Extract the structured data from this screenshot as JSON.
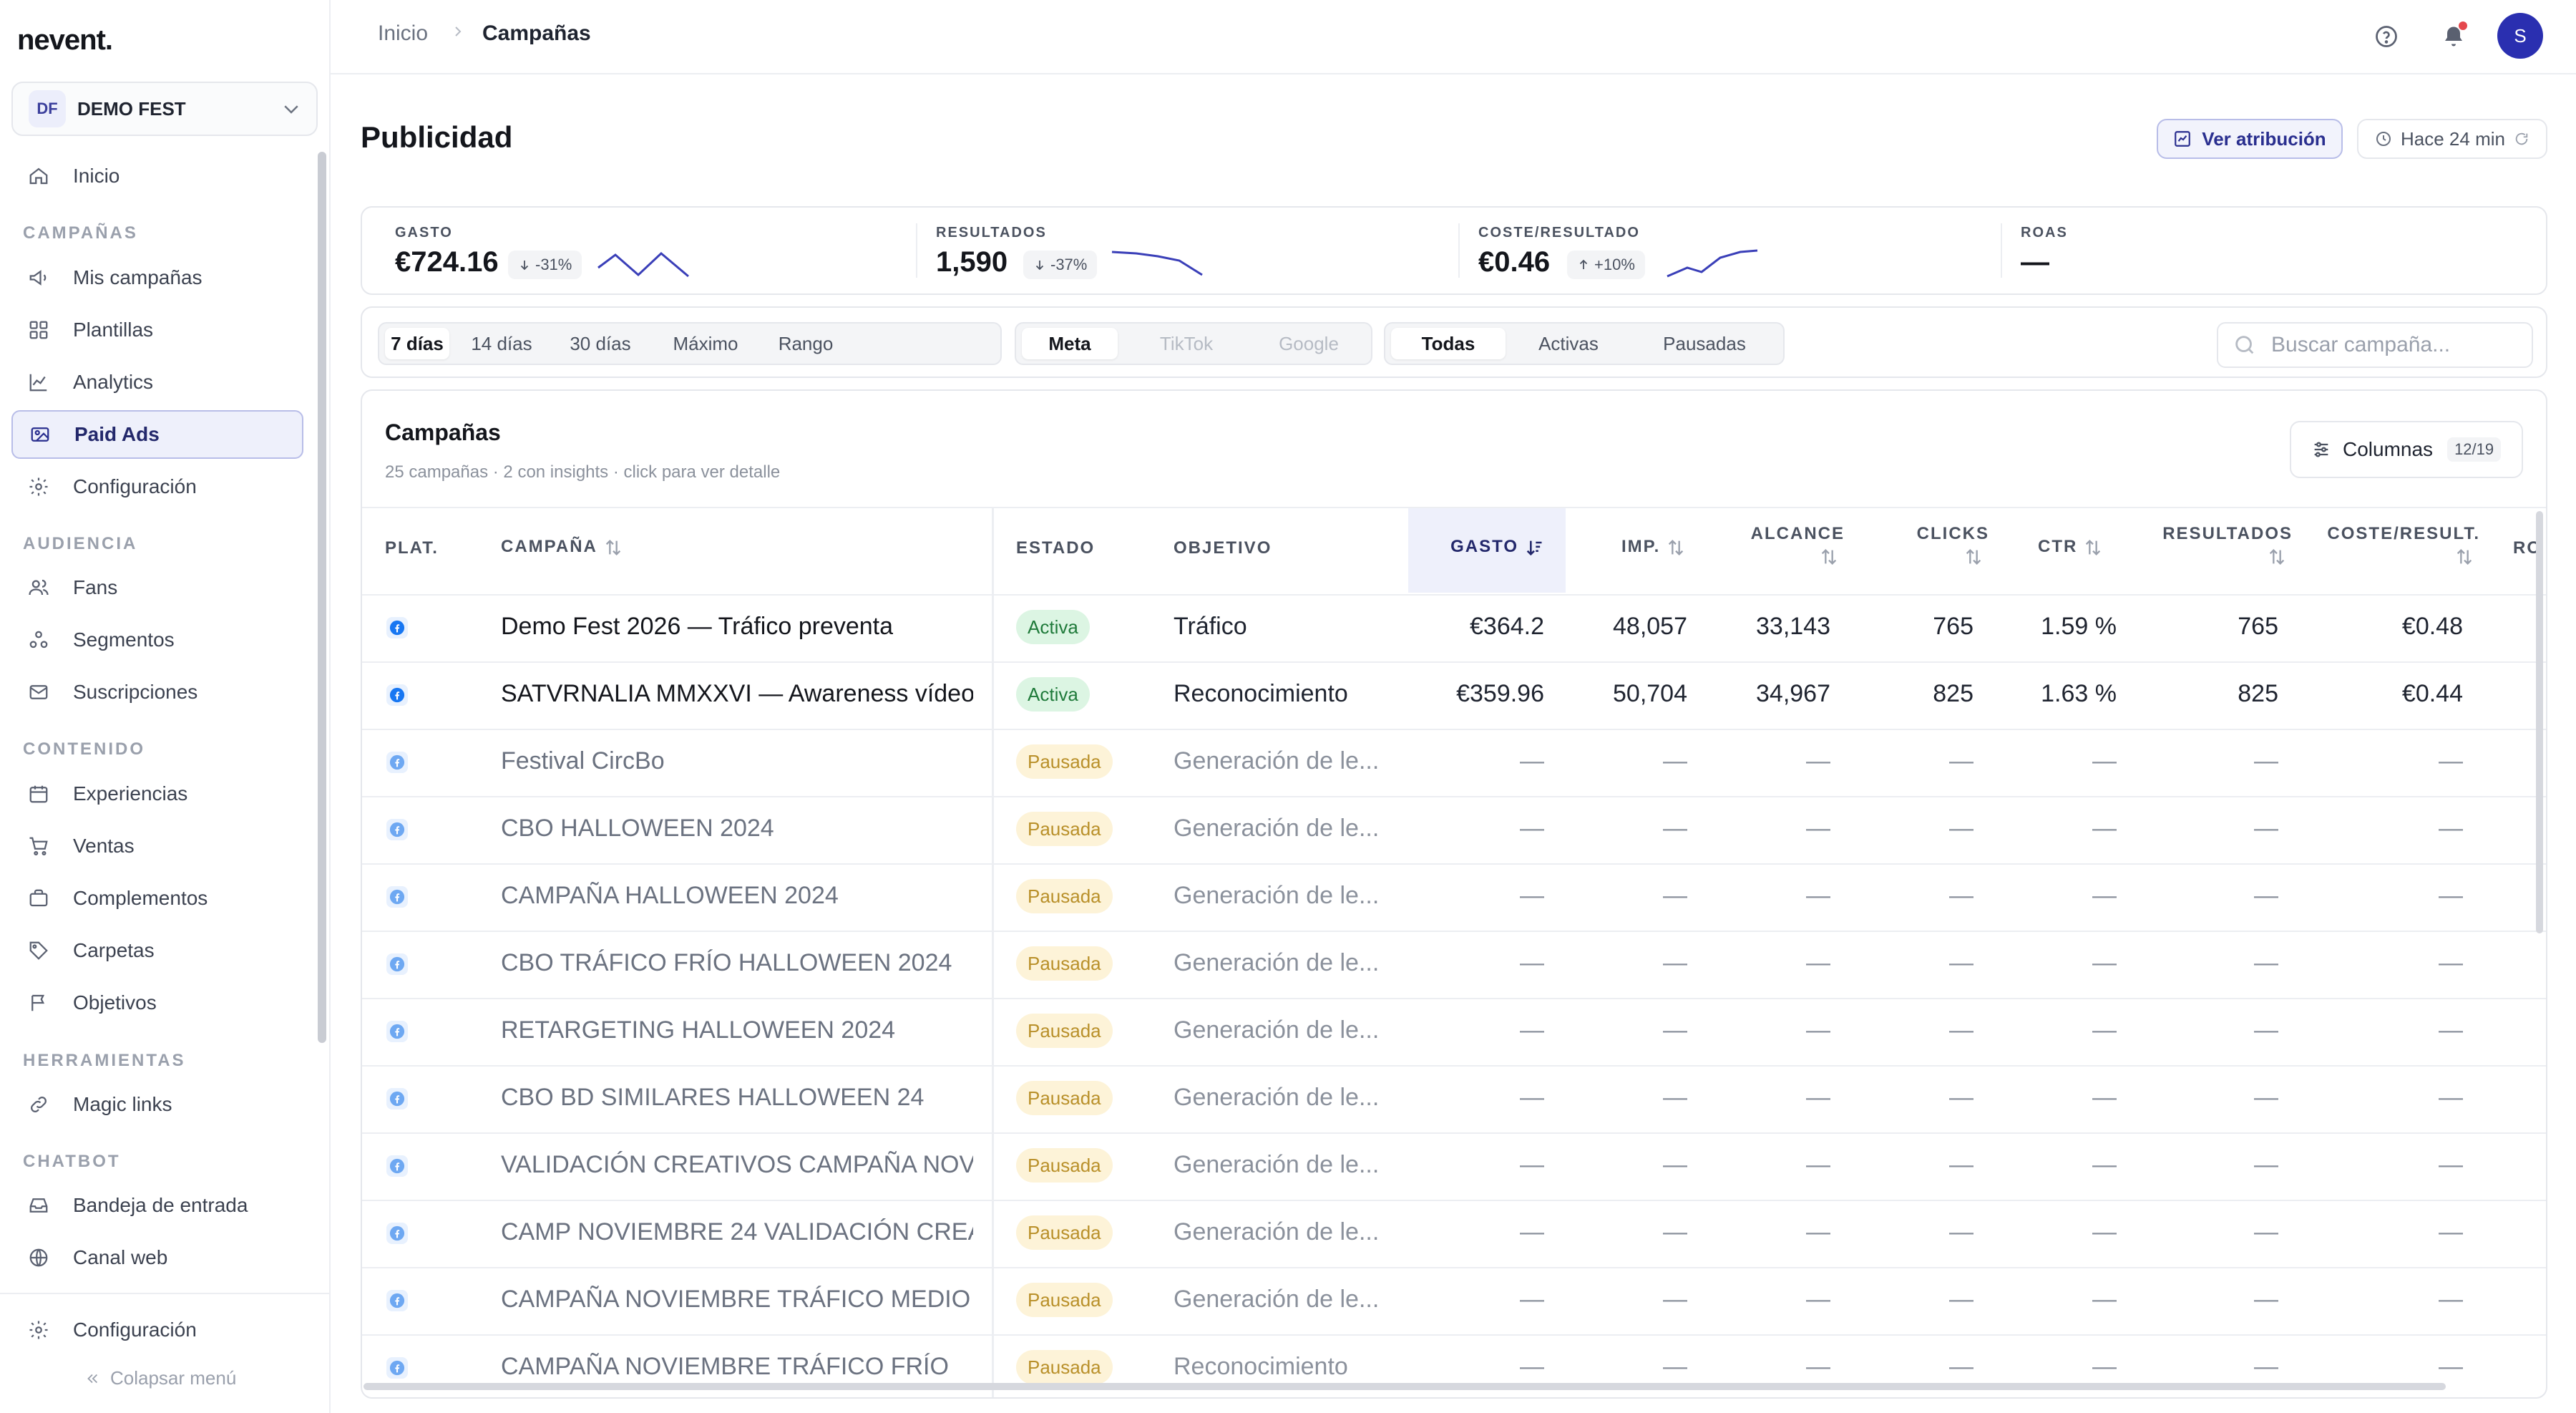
{
  "app": {
    "brand": "nevent."
  },
  "org": {
    "initials": "DF",
    "name": "DEMO FEST"
  },
  "sidebar": {
    "items_top": [
      {
        "label": "Inicio",
        "icon": "home-icon"
      }
    ],
    "sections": [
      {
        "title": "CAMPAÑAS",
        "items": [
          {
            "label": "Mis campañas",
            "icon": "megaphone-icon"
          },
          {
            "label": "Plantillas",
            "icon": "grid-icon"
          },
          {
            "label": "Analytics",
            "icon": "line-chart-icon"
          },
          {
            "label": "Paid Ads",
            "icon": "ad-image-icon",
            "active": true
          },
          {
            "label": "Configuración",
            "icon": "gear-icon"
          }
        ]
      },
      {
        "title": "AUDIENCIA",
        "items": [
          {
            "label": "Fans",
            "icon": "users-icon"
          },
          {
            "label": "Segmentos",
            "icon": "segments-icon"
          },
          {
            "label": "Suscripciones",
            "icon": "mail-icon"
          }
        ]
      },
      {
        "title": "CONTENIDO",
        "items": [
          {
            "label": "Experiencias",
            "icon": "calendar-icon"
          },
          {
            "label": "Ventas",
            "icon": "cart-icon"
          },
          {
            "label": "Complementos",
            "icon": "briefcase-icon"
          },
          {
            "label": "Carpetas",
            "icon": "tag-icon"
          },
          {
            "label": "Objetivos",
            "icon": "flag-icon"
          }
        ]
      },
      {
        "title": "HERRAMIENTAS",
        "items": [
          {
            "label": "Magic links",
            "icon": "link-icon"
          }
        ]
      },
      {
        "title": "CHATBOT",
        "items": [
          {
            "label": "Bandeja de entrada",
            "icon": "inbox-icon"
          },
          {
            "label": "Canal web",
            "icon": "globe-icon"
          }
        ]
      }
    ],
    "footer_settings": "Configuración",
    "collapse": "Colapsar menú"
  },
  "topbar": {
    "breadcrumb_home": "Inicio",
    "breadcrumb_current": "Campañas",
    "avatar_initial": "S"
  },
  "header": {
    "title": "Publicidad",
    "attribution_btn": "Ver atribución",
    "updated_label": "Hace 24 min"
  },
  "kpis": [
    {
      "label": "GASTO",
      "value": "€724.16",
      "delta": "-31%",
      "direction": "down"
    },
    {
      "label": "RESULTADOS",
      "value": "1,590",
      "delta": "-37%",
      "direction": "down"
    },
    {
      "label": "COSTE/RESULTADO",
      "value": "€0.46",
      "delta": "+10%",
      "direction": "up"
    },
    {
      "label": "ROAS",
      "value": "—"
    }
  ],
  "filters": {
    "periods": [
      "7 días",
      "14 días",
      "30 días",
      "Máximo",
      "Rango"
    ],
    "period_selected": "7 días",
    "platforms": [
      "Meta",
      "TikTok",
      "Google"
    ],
    "platform_selected": "Meta",
    "statuses": [
      "Todas",
      "Activas",
      "Pausadas"
    ],
    "status_selected": "Todas",
    "search_placeholder": "Buscar campaña..."
  },
  "table": {
    "title": "Campañas",
    "subtitle": "25 campañas · 2 con insights · click para ver detalle",
    "columns_btn": "Columnas",
    "columns_count": "12/19",
    "headers": {
      "plat": "PLAT.",
      "campaign": "CAMPAÑA",
      "status": "ESTADO",
      "objective": "OBJETIVO",
      "spend": "GASTO",
      "imp": "IMP.",
      "reach": "ALCANCE",
      "clicks": "CLICKS",
      "ctr": "CTR",
      "results": "RESULTADOS",
      "cpr": "COSTE/RESULT.",
      "roas_cut": "RO"
    },
    "rows": [
      {
        "name": "Demo Fest 2026 — Tráfico preventa",
        "status": "Activa",
        "objective": "Tráfico",
        "spend": "€364.2",
        "imp": "48,057",
        "reach": "33,143",
        "clicks": "765",
        "ctr": "1.59 %",
        "results": "765",
        "cpr": "€0.48"
      },
      {
        "name": "SATVRNALIA MMXXVI — Awareness vídeo",
        "status": "Activa",
        "objective": "Reconocimiento",
        "spend": "€359.96",
        "imp": "50,704",
        "reach": "34,967",
        "clicks": "825",
        "ctr": "1.63 %",
        "results": "825",
        "cpr": "€0.44"
      },
      {
        "name": "Festival CircBo",
        "status": "Pausada",
        "objective": "Generación de le...",
        "spend": "—",
        "imp": "—",
        "reach": "—",
        "clicks": "—",
        "ctr": "—",
        "results": "—",
        "cpr": "—"
      },
      {
        "name": "CBO HALLOWEEN 2024",
        "status": "Pausada",
        "objective": "Generación de le...",
        "spend": "—",
        "imp": "—",
        "reach": "—",
        "clicks": "—",
        "ctr": "—",
        "results": "—",
        "cpr": "—"
      },
      {
        "name": "CAMPAÑA HALLOWEEN 2024",
        "status": "Pausada",
        "objective": "Generación de le...",
        "spend": "—",
        "imp": "—",
        "reach": "—",
        "clicks": "—",
        "ctr": "—",
        "results": "—",
        "cpr": "—"
      },
      {
        "name": "CBO TRÁFICO FRÍO HALLOWEEN 2024",
        "status": "Pausada",
        "objective": "Generación de le...",
        "spend": "—",
        "imp": "—",
        "reach": "—",
        "clicks": "—",
        "ctr": "—",
        "results": "—",
        "cpr": "—"
      },
      {
        "name": "RETARGETING HALLOWEEN 2024",
        "status": "Pausada",
        "objective": "Generación de le...",
        "spend": "—",
        "imp": "—",
        "reach": "—",
        "clicks": "—",
        "ctr": "—",
        "results": "—",
        "cpr": "—"
      },
      {
        "name": "CBO BD SIMILARES HALLOWEEN 24",
        "status": "Pausada",
        "objective": "Generación de le...",
        "spend": "—",
        "imp": "—",
        "reach": "—",
        "clicks": "—",
        "ctr": "—",
        "results": "—",
        "cpr": "—"
      },
      {
        "name": "VALIDACIÓN CREATIVOS CAMPAÑA NOV...",
        "status": "Pausada",
        "objective": "Generación de le...",
        "spend": "—",
        "imp": "—",
        "reach": "—",
        "clicks": "—",
        "ctr": "—",
        "results": "—",
        "cpr": "—"
      },
      {
        "name": "CAMP NOVIEMBRE 24 VALIDACIÓN CREA...",
        "status": "Pausada",
        "objective": "Generación de le...",
        "spend": "—",
        "imp": "—",
        "reach": "—",
        "clicks": "—",
        "ctr": "—",
        "results": "—",
        "cpr": "—"
      },
      {
        "name": "CAMPAÑA NOVIEMBRE TRÁFICO MEDIO",
        "status": "Pausada",
        "objective": "Generación de le...",
        "spend": "—",
        "imp": "—",
        "reach": "—",
        "clicks": "—",
        "ctr": "—",
        "results": "—",
        "cpr": "—"
      },
      {
        "name": "CAMPAÑA NOVIEMBRE TRÁFICO FRÍO",
        "status": "Pausada",
        "objective": "Reconocimiento",
        "spend": "—",
        "imp": "—",
        "reach": "—",
        "clicks": "—",
        "ctr": "—",
        "results": "—",
        "cpr": "—"
      }
    ]
  },
  "colors": {
    "accent": "#2a2fb0",
    "active_green": "#1f7a3a",
    "paused_amber": "#b9902a",
    "notification_dot": "#e5484d"
  }
}
